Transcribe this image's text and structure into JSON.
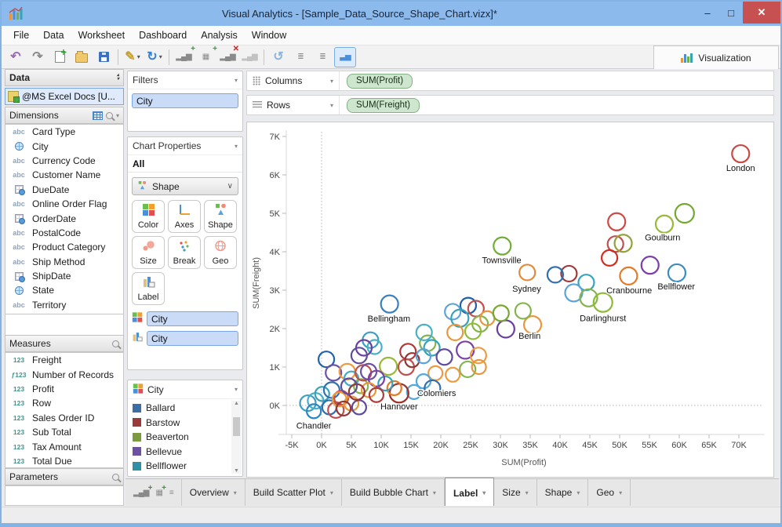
{
  "window": {
    "title": "Visual Analytics - [Sample_Data_Source_Shape_Chart.vizx]*",
    "controls": {
      "minimize": "–",
      "maximize": "□",
      "close": "✕"
    }
  },
  "menu": {
    "items": [
      "File",
      "Data",
      "Worksheet",
      "Dashboard",
      "Analysis",
      "Window"
    ]
  },
  "toolbar": {
    "visualization_label": "Visualization",
    "buttons": [
      {
        "name": "undo-button",
        "glyph": "↶",
        "color": "#9b6bb3"
      },
      {
        "name": "redo-button",
        "glyph": "↷",
        "color": "#8a8a8a"
      },
      {
        "name": "new-sheet-button",
        "shape": "new"
      },
      {
        "name": "open-button",
        "shape": "open"
      },
      {
        "name": "save-button",
        "shape": "save"
      },
      {
        "sep": true
      },
      {
        "name": "style-wand-button",
        "glyph": "✎",
        "color": "#c8a030",
        "dropdown": true
      },
      {
        "name": "refresh-button",
        "glyph": "↻",
        "color": "#3a7fd0",
        "dropdown": true
      },
      {
        "sep": true
      },
      {
        "name": "insert-chart-button",
        "mini": "▂▄▆",
        "badge": "+",
        "badge_color": "#2e9e2e"
      },
      {
        "name": "insert-crosstab-button",
        "mini": "▦",
        "badge": "+",
        "badge_color": "#2e9e2e"
      },
      {
        "name": "delete-chart-button",
        "mini": "▂▄▆",
        "badge": "✕",
        "badge_color": "#cc2222"
      },
      {
        "name": "chart-options-button",
        "mini": "▂▄▆",
        "disabled": true
      },
      {
        "sep": true
      },
      {
        "name": "swap-axes-button",
        "glyph": "↺",
        "color": "#8fb3d9"
      },
      {
        "name": "sort-bars-button",
        "mini": "≣"
      },
      {
        "name": "sort-bars-desc-button",
        "mini": "≣"
      },
      {
        "name": "chart-type-button",
        "mini": "▃▅",
        "selected": true
      }
    ]
  },
  "left_panel": {
    "data_header": "Data",
    "data_source": "@MS Excel Docs [U...",
    "dimensions": {
      "header": "Dimensions",
      "items": [
        {
          "icon": "abc",
          "icon_text": "abc",
          "label": "Card Type"
        },
        {
          "icon": "globe",
          "label": "City"
        },
        {
          "icon": "abc",
          "icon_text": "abc",
          "label": "Currency Code"
        },
        {
          "icon": "abc",
          "icon_text": "abc",
          "label": "Customer Name"
        },
        {
          "icon": "date",
          "label": "DueDate"
        },
        {
          "icon": "abc",
          "icon_text": "abc",
          "label": "Online Order Flag"
        },
        {
          "icon": "date",
          "label": "OrderDate"
        },
        {
          "icon": "abc",
          "icon_text": "abc",
          "label": "PostalCode"
        },
        {
          "icon": "abc",
          "icon_text": "abc",
          "label": "Product Category"
        },
        {
          "icon": "abc",
          "icon_text": "abc",
          "label": "Ship Method"
        },
        {
          "icon": "date",
          "label": "ShipDate"
        },
        {
          "icon": "globe",
          "label": "State"
        },
        {
          "icon": "abc",
          "icon_text": "abc",
          "label": "Territory"
        }
      ]
    },
    "measures": {
      "header": "Measures",
      "items": [
        {
          "icon_text": "123",
          "label": "Freight"
        },
        {
          "icon_text": "ƒ123",
          "label": "Number of Records"
        },
        {
          "icon_text": "123",
          "label": "Profit"
        },
        {
          "icon_text": "123",
          "label": "Row"
        },
        {
          "icon_text": "123",
          "label": "Sales Order ID"
        },
        {
          "icon_text": "123",
          "label": "Sub Total"
        },
        {
          "icon_text": "123",
          "label": "Tax Amount"
        },
        {
          "icon_text": "123",
          "label": "Total Due"
        }
      ]
    },
    "parameters": {
      "header": "Parameters"
    }
  },
  "filters_panel": {
    "header": "Filters",
    "item": "City"
  },
  "chart_properties": {
    "header": "Chart Properties",
    "scope": "All",
    "dropdown_label": "Shape",
    "buttons": [
      {
        "id": "color",
        "label": "Color"
      },
      {
        "id": "axes",
        "label": "Axes"
      },
      {
        "id": "shape",
        "label": "Shape"
      },
      {
        "id": "size",
        "label": "Size"
      },
      {
        "id": "break",
        "label": "Break"
      },
      {
        "id": "geo",
        "label": "Geo"
      },
      {
        "id": "label",
        "label": "Label"
      }
    ],
    "color_field": "City",
    "label_field": "City"
  },
  "legend": {
    "title": "City",
    "items": [
      {
        "label": "Ballard",
        "color": "#3a6ea5"
      },
      {
        "label": "Barstow",
        "color": "#9c3a3a"
      },
      {
        "label": "Beaverton",
        "color": "#7a9c3e"
      },
      {
        "label": "Bellevue",
        "color": "#6a51a3"
      },
      {
        "label": "Bellflower",
        "color": "#2e8fa5"
      },
      {
        "label": "Bellingham",
        "color": "#e07b2a"
      }
    ]
  },
  "shelves": {
    "columns_label": "Columns",
    "columns_field": "SUM(Profit)",
    "rows_label": "Rows",
    "rows_field": "SUM(Freight)"
  },
  "bottom_bar": {
    "icons": [
      {
        "name": "add-chart-icon",
        "glyph": "▂▄▆",
        "badge": "+"
      },
      {
        "name": "add-crosstab-icon",
        "glyph": "▦",
        "badge": "+"
      },
      {
        "name": "list-view-icon",
        "glyph": "≡"
      }
    ],
    "tabs": [
      {
        "label": "Overview"
      },
      {
        "label": "Build Scatter Plot"
      },
      {
        "label": "Build Bubble Chart"
      },
      {
        "label": "Label",
        "active": true
      },
      {
        "label": "Size"
      },
      {
        "label": "Shape"
      },
      {
        "label": "Geo"
      }
    ]
  },
  "chart_data": {
    "type": "scatter",
    "xlabel": "SUM(Profit)",
    "ylabel": "SUM(Freight)",
    "series_field": "City",
    "xlim_k": [
      -7,
      74
    ],
    "ylim_k": [
      -0.8,
      7.2
    ],
    "zero_gridlines": "dotted",
    "x_ticks": [
      {
        "v": -5,
        "label": "-5K"
      },
      {
        "v": 0,
        "label": "0K"
      },
      {
        "v": 5,
        "label": "5K"
      },
      {
        "v": 10,
        "label": "10K"
      },
      {
        "v": 15,
        "label": "15K"
      },
      {
        "v": 20,
        "label": "20K"
      },
      {
        "v": 25,
        "label": "25K"
      },
      {
        "v": 30,
        "label": "30K"
      },
      {
        "v": 35,
        "label": "35K"
      },
      {
        "v": 40,
        "label": "40K"
      },
      {
        "v": 45,
        "label": "45K"
      },
      {
        "v": 50,
        "label": "50K"
      },
      {
        "v": 55,
        "label": "55K"
      },
      {
        "v": 60,
        "label": "60K"
      },
      {
        "v": 65,
        "label": "65K"
      },
      {
        "v": 70,
        "label": "70K"
      }
    ],
    "y_ticks": [
      {
        "v": 0,
        "label": "0K"
      },
      {
        "v": 1,
        "label": "1K"
      },
      {
        "v": 2,
        "label": "2K"
      },
      {
        "v": 3,
        "label": "3K"
      },
      {
        "v": 4,
        "label": "4K"
      },
      {
        "v": 5,
        "label": "5K"
      },
      {
        "v": 6,
        "label": "6K"
      },
      {
        "v": 7,
        "label": "7K"
      }
    ],
    "points": [
      {
        "x": 70.3,
        "y": 6.55,
        "c": "#c84a44",
        "r": 11
      },
      {
        "x": 60.9,
        "y": 5.0,
        "c": "#74a82e",
        "r": 12
      },
      {
        "x": 57.5,
        "y": 4.72,
        "c": "#98b83c",
        "r": 11
      },
      {
        "x": 49.5,
        "y": 4.78,
        "c": "#cc4a44",
        "r": 11
      },
      {
        "x": 49.3,
        "y": 4.2,
        "c": "#c0504d",
        "r": 10
      },
      {
        "x": 50.6,
        "y": 4.22,
        "c": "#93a23c",
        "r": 11
      },
      {
        "x": 48.3,
        "y": 3.84,
        "c": "#d02c20",
        "r": 10
      },
      {
        "x": 55.1,
        "y": 3.65,
        "c": "#7b3fa8",
        "r": 11
      },
      {
        "x": 59.6,
        "y": 3.45,
        "c": "#3e8cbd",
        "r": 11
      },
      {
        "x": 51.5,
        "y": 3.37,
        "c": "#e07b2a",
        "r": 11
      },
      {
        "x": 41.5,
        "y": 3.43,
        "c": "#9e3a38",
        "r": 10
      },
      {
        "x": 39.2,
        "y": 3.4,
        "c": "#2f6fb0",
        "r": 10
      },
      {
        "x": 34.5,
        "y": 3.46,
        "c": "#e08a3c",
        "r": 10
      },
      {
        "x": 30.3,
        "y": 4.15,
        "c": "#72ad35",
        "r": 11
      },
      {
        "x": 44.4,
        "y": 3.2,
        "c": "#38a3b8",
        "r": 10
      },
      {
        "x": 42.3,
        "y": 2.93,
        "c": "#5ba3d9",
        "r": 11
      },
      {
        "x": 44.8,
        "y": 2.8,
        "c": "#84b54a",
        "r": 11
      },
      {
        "x": 47.2,
        "y": 2.68,
        "c": "#8cbb33",
        "r": 12
      },
      {
        "x": 11.4,
        "y": 2.64,
        "c": "#3a7fc1",
        "r": 11
      },
      {
        "x": 24.6,
        "y": 2.6,
        "c": "#1f5fae",
        "r": 10
      },
      {
        "x": 25.9,
        "y": 2.52,
        "c": "#c0504d",
        "r": 10
      },
      {
        "x": 22.0,
        "y": 2.44,
        "c": "#5ba3d9",
        "r": 10
      },
      {
        "x": 23.2,
        "y": 2.27,
        "c": "#38a3b8",
        "r": 11
      },
      {
        "x": 26.6,
        "y": 2.12,
        "c": "#84b54a",
        "r": 10
      },
      {
        "x": 27.8,
        "y": 2.27,
        "c": "#e8973f",
        "r": 9
      },
      {
        "x": 25.4,
        "y": 1.93,
        "c": "#8cbb33",
        "r": 10
      },
      {
        "x": 30.9,
        "y": 1.99,
        "c": "#6a3fa0",
        "r": 11
      },
      {
        "x": 35.4,
        "y": 2.1,
        "c": "#e8973f",
        "r": 11
      },
      {
        "x": 30.1,
        "y": 2.4,
        "c": "#74a82e",
        "r": 10
      },
      {
        "x": 33.8,
        "y": 2.46,
        "c": "#84b54a",
        "r": 10
      },
      {
        "x": 0.8,
        "y": 1.2,
        "c": "#1f63ad",
        "r": 10
      },
      {
        "x": 8.2,
        "y": 1.7,
        "c": "#3a9ec0",
        "r": 10
      },
      {
        "x": 8.9,
        "y": 1.52,
        "c": "#48b0c8",
        "r": 9
      },
      {
        "x": 7.1,
        "y": 1.5,
        "c": "#6a3fa0",
        "r": 10
      },
      {
        "x": 6.3,
        "y": 1.3,
        "c": "#5f4b9e",
        "r": 10
      },
      {
        "x": 11.2,
        "y": 1.02,
        "c": "#9ab832",
        "r": 11
      },
      {
        "x": 14.5,
        "y": 1.4,
        "c": "#b03a38",
        "r": 10
      },
      {
        "x": 14.2,
        "y": 1.0,
        "c": "#c0504d",
        "r": 10
      },
      {
        "x": 15.2,
        "y": 1.18,
        "c": "#943634",
        "r": 9
      },
      {
        "x": 17.8,
        "y": 1.62,
        "c": "#84b54a",
        "r": 10
      },
      {
        "x": 18.5,
        "y": 1.5,
        "c": "#38a3b8",
        "r": 10
      },
      {
        "x": 17.2,
        "y": 1.9,
        "c": "#48b0c8",
        "r": 10
      },
      {
        "x": 20.6,
        "y": 1.26,
        "c": "#5f4b9e",
        "r": 10
      },
      {
        "x": 22.4,
        "y": 1.9,
        "c": "#e8973f",
        "r": 10
      },
      {
        "x": 24.1,
        "y": 1.44,
        "c": "#7b3fa8",
        "r": 11
      },
      {
        "x": 26.3,
        "y": 1.3,
        "c": "#ed9b40",
        "r": 10
      },
      {
        "x": 24.5,
        "y": 0.94,
        "c": "#84b54a",
        "r": 10
      },
      {
        "x": 26.4,
        "y": 1.0,
        "c": "#e8973f",
        "r": 9
      },
      {
        "x": 22.0,
        "y": 0.8,
        "c": "#ed9b40",
        "r": 9
      },
      {
        "x": 17.1,
        "y": 1.28,
        "c": "#5ba3d9",
        "r": 9
      },
      {
        "x": 19.1,
        "y": 0.84,
        "c": "#ed9b40",
        "r": 9
      },
      {
        "x": 17.1,
        "y": 0.63,
        "c": "#55a8d8",
        "r": 9
      },
      {
        "x": 18.6,
        "y": 0.45,
        "c": "#2f6fb0",
        "r": 10
      },
      {
        "x": 15.5,
        "y": 0.35,
        "c": "#55a8d8",
        "r": 9
      },
      {
        "x": 13.0,
        "y": 0.32,
        "c": "#9e2f28",
        "r": 12
      },
      {
        "x": 12.2,
        "y": 0.45,
        "c": "#e07b2a",
        "r": 9
      },
      {
        "x": 10.7,
        "y": 0.57,
        "c": "#38a3b8",
        "r": 9
      },
      {
        "x": -2.3,
        "y": 0.06,
        "c": "#3a9ec0",
        "r": 10
      },
      {
        "x": -1.0,
        "y": 0.12,
        "c": "#48b0c8",
        "r": 10
      },
      {
        "x": -1.3,
        "y": -0.15,
        "c": "#2e86c1",
        "r": 9
      },
      {
        "x": 0.1,
        "y": 0.3,
        "c": "#38a3b8",
        "r": 9
      },
      {
        "x": 1.7,
        "y": 0.4,
        "c": "#2f6fb0",
        "r": 10
      },
      {
        "x": 2.0,
        "y": 0.85,
        "c": "#6a51a3",
        "r": 10
      },
      {
        "x": 1.3,
        "y": -0.05,
        "c": "#2f6fb0",
        "r": 9
      },
      {
        "x": 2.4,
        "y": -0.12,
        "c": "#c0504d",
        "r": 10
      },
      {
        "x": 3.3,
        "y": 0.2,
        "c": "#c0504d",
        "r": 9
      },
      {
        "x": 3.0,
        "y": 0.16,
        "c": "#e8973f",
        "r": 9
      },
      {
        "x": 4.3,
        "y": 0.88,
        "c": "#ed9b40",
        "r": 10
      },
      {
        "x": 5.0,
        "y": 0.7,
        "c": "#48a8c8",
        "r": 9
      },
      {
        "x": 5.0,
        "y": 0.05,
        "c": "#e8973f",
        "r": 9
      },
      {
        "x": 6.3,
        "y": -0.05,
        "c": "#5f4b9e",
        "r": 9
      },
      {
        "x": 6.6,
        "y": 0.5,
        "c": "#84b54a",
        "r": 9
      },
      {
        "x": 7.0,
        "y": 0.85,
        "c": "#c0504d",
        "r": 10
      },
      {
        "x": 7.9,
        "y": 0.88,
        "c": "#6a51a3",
        "r": 10
      },
      {
        "x": 9.2,
        "y": 0.7,
        "c": "#7b3fa8",
        "r": 10
      },
      {
        "x": 7.9,
        "y": 0.4,
        "c": "#e8973f",
        "r": 9
      },
      {
        "x": 9.2,
        "y": 0.27,
        "c": "#b03a38",
        "r": 9
      },
      {
        "x": 5.9,
        "y": 0.35,
        "c": "#943634",
        "r": 10
      },
      {
        "x": 4.6,
        "y": 0.5,
        "c": "#5f4b9e",
        "r": 10
      },
      {
        "x": 3.7,
        "y": -0.08,
        "c": "#943634",
        "r": 9
      }
    ],
    "point_labels": [
      {
        "text": "London",
        "x": 70.3,
        "y": 6.18
      },
      {
        "text": "Goulburn",
        "x": 57.2,
        "y": 4.38
      },
      {
        "text": "Townsville",
        "x": 30.2,
        "y": 3.79
      },
      {
        "text": "Sydney",
        "x": 34.4,
        "y": 3.04
      },
      {
        "text": "Cranbourne",
        "x": 51.6,
        "y": 3.0
      },
      {
        "text": "Bellflower",
        "x": 59.5,
        "y": 3.1
      },
      {
        "text": "Darlinghurst",
        "x": 47.2,
        "y": 2.28
      },
      {
        "text": "Berlin",
        "x": 34.9,
        "y": 1.82
      },
      {
        "text": "Bellingham",
        "x": 11.3,
        "y": 2.27
      },
      {
        "text": "Colomiers",
        "x": 19.3,
        "y": 0.33
      },
      {
        "text": "Hannover",
        "x": 13.0,
        "y": -0.02
      },
      {
        "text": "Chandler",
        "x": -1.3,
        "y": -0.52
      }
    ]
  }
}
